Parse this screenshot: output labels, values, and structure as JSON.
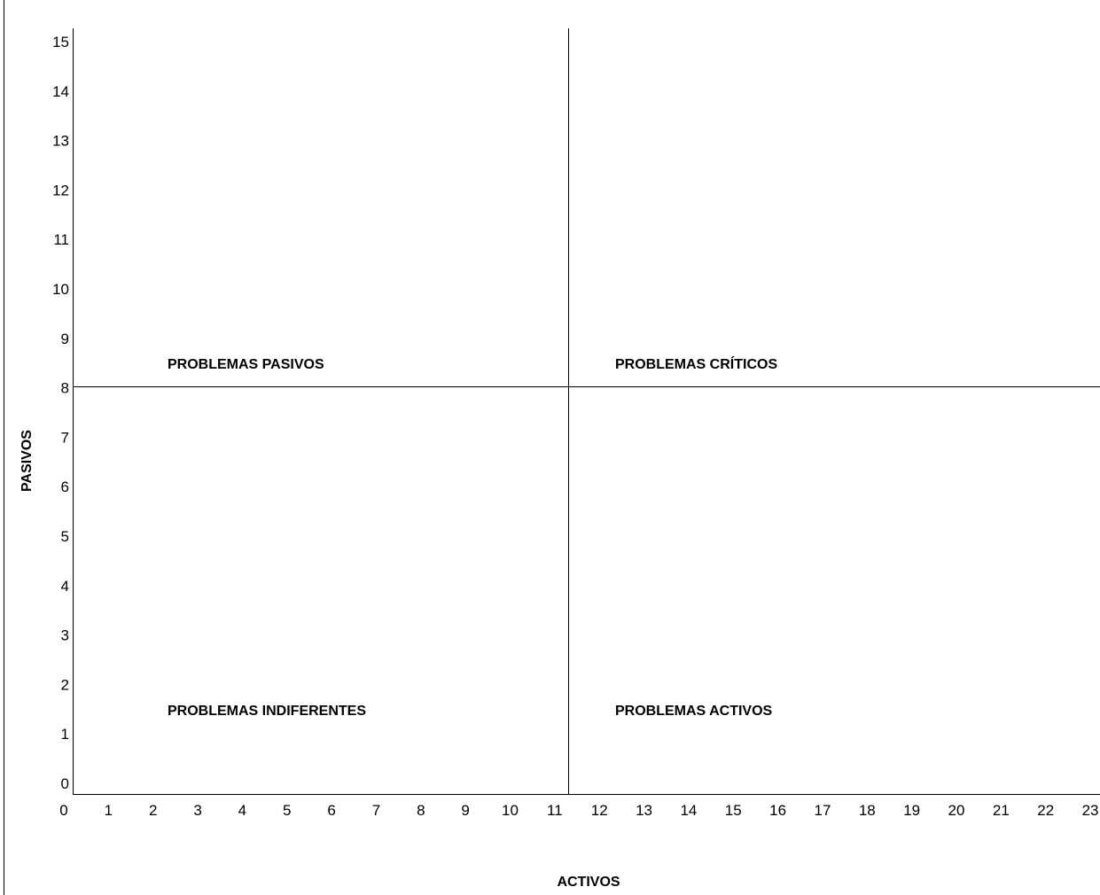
{
  "chart_data": {
    "type": "scatter",
    "title": "",
    "xlabel": "ACTIVOS",
    "ylabel": "PASIVOS",
    "xlim": [
      0,
      23
    ],
    "ylim": [
      0,
      15.3
    ],
    "x_ticks": [
      "0",
      "1",
      "2",
      "3",
      "4",
      "5",
      "6",
      "7",
      "8",
      "9",
      "10",
      "11",
      "12",
      "13",
      "14",
      "15",
      "16",
      "17",
      "18",
      "19",
      "20",
      "21",
      "22",
      "23"
    ],
    "y_ticks": [
      "0",
      "1",
      "2",
      "3",
      "4",
      "5",
      "6",
      "7",
      "8",
      "9",
      "10",
      "11",
      "12",
      "13",
      "14",
      "15"
    ],
    "grid": false,
    "x_divider": 11.3,
    "y_divider": 7.8,
    "series": [],
    "quadrant_labels": {
      "top_left": "PROBLEMAS PASIVOS",
      "top_right": "PROBLEMAS CRÍTICOS",
      "bottom_left": "PROBLEMAS INDIFERENTES",
      "bottom_right": "PROBLEMAS ACTIVOS"
    }
  }
}
